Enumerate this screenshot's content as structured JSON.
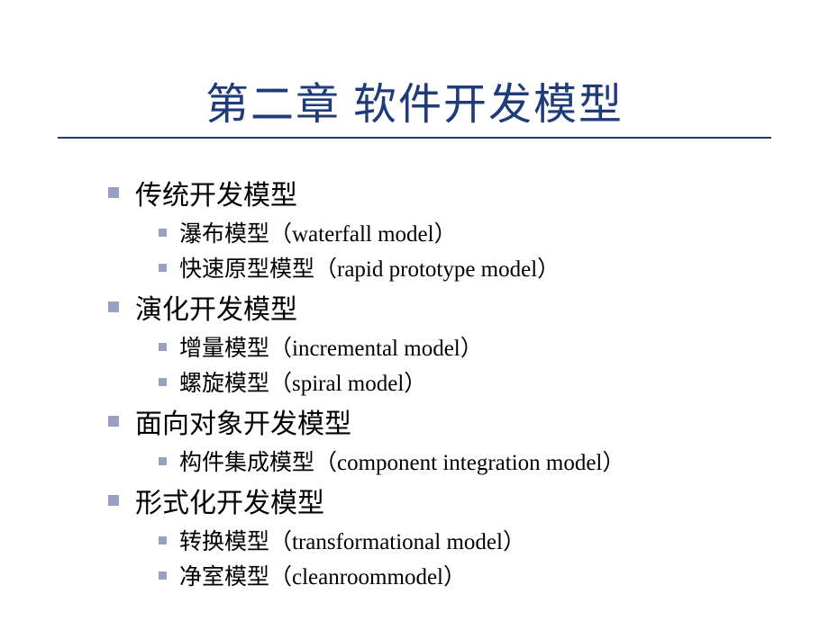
{
  "title": "第二章  软件开发模型",
  "colors": {
    "title_color": "#1f3b7a",
    "underline_color": "#1f3b7a",
    "bullet_color": "#9aa0c0",
    "text_color": "#000000",
    "background": "#ffffff"
  },
  "typography": {
    "title_fontsize": 48,
    "l1_fontsize": 30,
    "l2_fontsize": 25
  },
  "sections": [
    {
      "heading": "传统开发模型",
      "children": [
        "瀑布模型（waterfall model）",
        "快速原型模型（rapid prototype model）"
      ]
    },
    {
      "heading": "演化开发模型",
      "children": [
        "增量模型（incremental model）",
        "螺旋模型（spiral model）"
      ]
    },
    {
      "heading": "面向对象开发模型",
      "children": [
        "构件集成模型（component integration model）"
      ]
    },
    {
      "heading": "形式化开发模型",
      "children": [
        "转换模型（transformational model）",
        "净室模型（cleanroommodel）"
      ]
    }
  ]
}
